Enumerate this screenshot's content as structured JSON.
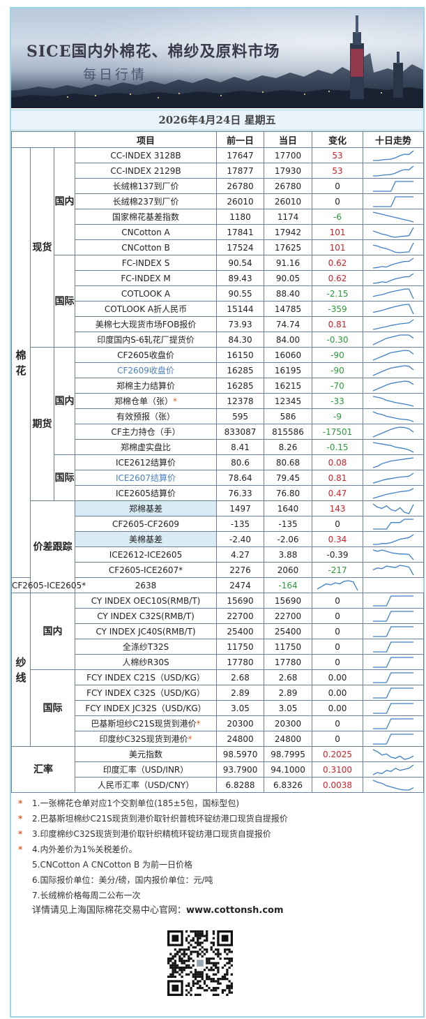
{
  "banner": {
    "title": "SICE国内外棉花、棉纱及原料市场",
    "subtitle": "每日行情"
  },
  "date": "2026年4月24日 星期五",
  "headers": {
    "item": "项目",
    "prev": "前一日",
    "curr": "当日",
    "change": "变化",
    "trend": "十日走势"
  },
  "groups": {
    "cotton": "棉花",
    "spot": "现货",
    "futures": "期货",
    "spread": "价差跟踪",
    "domestic": "国内",
    "international": "国际",
    "yarn": "纱线",
    "fx": "汇率"
  },
  "rows": [
    {
      "label": "CC-INDEX 3128B",
      "prev": "17647",
      "curr": "17700",
      "change": "53",
      "color": "red",
      "trend": [
        17560,
        17560,
        17570,
        17575,
        17580,
        17600,
        17630,
        17650,
        17647,
        17700
      ]
    },
    {
      "label": "CC-INDEX 2129B",
      "prev": "17877",
      "curr": "17930",
      "change": "53",
      "color": "red",
      "trend": [
        17790,
        17790,
        17800,
        17805,
        17810,
        17830,
        17860,
        17880,
        17877,
        17930
      ]
    },
    {
      "label": "长绒棉137到厂价",
      "prev": "26780",
      "curr": "26780",
      "change": "0",
      "color": "black",
      "trend": [
        26500,
        26500,
        26500,
        26500,
        26500,
        26780,
        26780,
        26780,
        26780,
        26780
      ]
    },
    {
      "label": "长绒棉237到厂价",
      "prev": "26010",
      "curr": "26010",
      "change": "0",
      "color": "black",
      "trend": [
        25700,
        25700,
        25700,
        25700,
        25700,
        26010,
        26010,
        26010,
        26010,
        26010
      ]
    },
    {
      "label": "国家棉花基差指数",
      "prev": "1180",
      "curr": "1174",
      "change": "-6",
      "color": "green",
      "trend": [
        1220,
        1215,
        1210,
        1205,
        1200,
        1195,
        1190,
        1185,
        1180,
        1174
      ]
    },
    {
      "label": "CNCotton A",
      "prev": "17841",
      "curr": "17942",
      "change": "101",
      "color": "red",
      "trend": [
        17900,
        17880,
        17860,
        17850,
        17830,
        17820,
        17830,
        17835,
        17841,
        17942
      ]
    },
    {
      "label": "CNCotton B",
      "prev": "17524",
      "curr": "17625",
      "change": "101",
      "color": "red",
      "trend": [
        17600,
        17590,
        17570,
        17560,
        17540,
        17520,
        17515,
        17520,
        17524,
        17625
      ]
    },
    {
      "label": "FC-INDEX S",
      "prev": "90.54",
      "curr": "91.16",
      "change": "0.62",
      "color": "red",
      "trend": [
        89.2,
        89.3,
        89.5,
        89.4,
        89.8,
        90.1,
        90.3,
        90.5,
        90.54,
        91.16
      ]
    },
    {
      "label": "FC-INDEX M",
      "prev": "89.43",
      "curr": "90.05",
      "change": "0.62",
      "color": "red",
      "trend": [
        88.1,
        88.2,
        88.4,
        88.3,
        88.7,
        89.0,
        89.2,
        89.4,
        89.43,
        90.05
      ]
    },
    {
      "label": "COTLOOK A",
      "prev": "90.55",
      "curr": "88.40",
      "change": "-2.15",
      "color": "green",
      "trend": [
        88.9,
        89.1,
        89.3,
        89.6,
        89.9,
        90.1,
        90.3,
        90.5,
        90.55,
        88.4
      ]
    },
    {
      "label": "COTLOOK A折人民币",
      "prev": "15144",
      "curr": "14785",
      "change": "-359",
      "color": "green",
      "trend": [
        14850,
        14880,
        14920,
        14970,
        15020,
        15060,
        15100,
        15130,
        15144,
        14785
      ]
    },
    {
      "label": "美棉七大现货市场FOB报价",
      "prev": "73.93",
      "curr": "74.74",
      "change": "0.81",
      "color": "red",
      "trend": [
        72.3,
        72.5,
        72.8,
        73.0,
        73.3,
        73.5,
        73.7,
        73.8,
        73.93,
        74.74
      ]
    },
    {
      "label": "印度国内S-6轧花厂提货价",
      "prev": "84.30",
      "curr": "84.00",
      "change": "-0.30",
      "color": "green",
      "trend": [
        83.4,
        83.6,
        83.8,
        84.0,
        84.1,
        84.2,
        84.3,
        84.3,
        84.3,
        84.0
      ]
    },
    {
      "label": "CF2605收盘价",
      "prev": "16150",
      "curr": "16060",
      "change": "-90",
      "color": "green",
      "trend": [
        15900,
        15950,
        16000,
        16050,
        16100,
        16120,
        16140,
        16160,
        16150,
        16060
      ]
    },
    {
      "label": "CF2609收盘价",
      "prev": "16285",
      "curr": "16195",
      "change": "-90",
      "color": "green",
      "blue": true,
      "trend": [
        16050,
        16100,
        16150,
        16200,
        16240,
        16260,
        16280,
        16300,
        16285,
        16195
      ]
    },
    {
      "label": "郑棉主力结算价",
      "prev": "16285",
      "curr": "16215",
      "change": "-70",
      "color": "green",
      "trend": [
        16050,
        16100,
        16150,
        16200,
        16240,
        16260,
        16280,
        16300,
        16285,
        16215
      ]
    },
    {
      "label": "郑棉仓单（张）",
      "star": "*",
      "prev": "12378",
      "curr": "12345",
      "change": "-33",
      "color": "green",
      "trend": [
        12600,
        12580,
        12550,
        12500,
        12470,
        12440,
        12420,
        12400,
        12378,
        12345
      ]
    },
    {
      "label": "有效预报（张）",
      "prev": "595",
      "curr": "586",
      "change": "-9",
      "color": "green",
      "trend": [
        640,
        630,
        625,
        615,
        610,
        605,
        600,
        598,
        595,
        586
      ]
    },
    {
      "label": "CF主力持仓（手）",
      "prev": "833087",
      "curr": "815586",
      "change": "-17501",
      "color": "green",
      "trend": [
        790000,
        800000,
        810000,
        820000,
        830000,
        838000,
        842000,
        840000,
        833087,
        815586
      ]
    },
    {
      "label": "郑棉虚实盘比",
      "prev": "8.41",
      "curr": "8.26",
      "change": "-0.15",
      "color": "green",
      "trend": [
        8.9,
        8.85,
        8.8,
        8.75,
        8.7,
        8.6,
        8.55,
        8.5,
        8.41,
        8.26
      ]
    },
    {
      "label": "ICE2612结算价",
      "prev": "80.6",
      "curr": "80.68",
      "change": "0.08",
      "color": "red",
      "trend": [
        79.2,
        79.4,
        79.8,
        80.0,
        80.2,
        80.3,
        80.4,
        80.5,
        80.6,
        80.68
      ]
    },
    {
      "label": "ICE2607结算价",
      "prev": "78.64",
      "curr": "79.45",
      "change": "0.81",
      "color": "red",
      "blue": true,
      "trend": [
        76.8,
        77.1,
        77.5,
        77.8,
        78.0,
        78.2,
        78.4,
        78.5,
        78.64,
        79.45
      ]
    },
    {
      "label": "ICE2605结算价",
      "prev": "76.33",
      "curr": "76.80",
      "change": "0.47",
      "color": "red",
      "trend": [
        74.6,
        74.9,
        75.2,
        75.5,
        75.7,
        75.9,
        76.1,
        76.2,
        76.33,
        76.8
      ]
    },
    {
      "label": "郑棉基差",
      "hl": true,
      "prev": "1497",
      "curr": "1640",
      "change": "143",
      "color": "red",
      "trend": [
        1650,
        1600,
        1580,
        1620,
        1560,
        1540,
        1590,
        1520,
        1497,
        1640
      ]
    },
    {
      "label": "CF2605-CF2609",
      "prev": "-135",
      "curr": "-135",
      "change": "0",
      "color": "black",
      "trend": [
        -150,
        -150,
        -150,
        -150,
        -140,
        -140,
        -140,
        -135,
        -135,
        -135
      ]
    },
    {
      "label": "美棉基差",
      "hl": true,
      "prev": "-2.40",
      "curr": "-2.06",
      "change": "0.34",
      "color": "red",
      "trend": [
        -3.2,
        -3.2,
        -3.1,
        -3.1,
        -3.0,
        -2.8,
        -2.6,
        -2.5,
        -2.4,
        -2.06
      ]
    },
    {
      "label": "ICE2612-ICE2605",
      "prev": "4.27",
      "curr": "3.88",
      "change": "-0.39",
      "color": "black",
      "trend": [
        4.6,
        4.5,
        4.6,
        4.5,
        4.4,
        4.35,
        4.3,
        4.3,
        4.27,
        3.88
      ]
    },
    {
      "label": "CF2605-ICE2607*",
      "prev": "2276",
      "curr": "2060",
      "change": "-217",
      "color": "green",
      "trend": [
        2200,
        2250,
        2230,
        2300,
        2280,
        2260,
        2320,
        2300,
        2276,
        2060
      ]
    },
    {
      "label": "CF2605-ICE2605*",
      "prev": "2638",
      "curr": "2474",
      "change": "-164",
      "color": "green",
      "trend": [
        2500,
        2550,
        2600,
        2580,
        2620,
        2600,
        2650,
        2660,
        2638,
        2474
      ]
    },
    {
      "label": "CY INDEX OEC10S(RMB/T)",
      "prev": "15690",
      "curr": "15690",
      "change": "0",
      "color": "black",
      "trend": [
        15500,
        15500,
        15500,
        15500,
        15690,
        15690,
        15690,
        15690,
        15690,
        15690
      ]
    },
    {
      "label": "CY INDEX C32S(RMB/T)",
      "prev": "22700",
      "curr": "22700",
      "change": "0",
      "color": "black",
      "trend": [
        22500,
        22500,
        22500,
        22500,
        22700,
        22700,
        22700,
        22700,
        22700,
        22700
      ]
    },
    {
      "label": "CY INDEX JC40S(RMB/T)",
      "prev": "25400",
      "curr": "25400",
      "change": "0",
      "color": "black",
      "trend": [
        25200,
        25200,
        25200,
        25200,
        25400,
        25400,
        25400,
        25400,
        25400,
        25400
      ]
    },
    {
      "label": "全涤纱T32S",
      "prev": "11750",
      "curr": "11750",
      "change": "0",
      "color": "black",
      "trend": [
        11700,
        11700,
        11700,
        11700,
        11750,
        11750,
        11750,
        11750,
        11750,
        11750
      ]
    },
    {
      "label": "人棉纱R30S",
      "prev": "17780",
      "curr": "17780",
      "change": "0",
      "color": "black",
      "trend": [
        17700,
        17700,
        17700,
        17700,
        17780,
        17780,
        17780,
        17780,
        17780,
        17780
      ]
    },
    {
      "label": "FCY INDEX C21S（USD/KG）",
      "prev": "2.68",
      "curr": "2.68",
      "change": "0.00",
      "color": "black",
      "trend": [
        2.66,
        2.66,
        2.66,
        2.66,
        2.68,
        2.68,
        2.68,
        2.68,
        2.68,
        2.68
      ]
    },
    {
      "label": "FCY INDEX C32S（USD/KG）",
      "prev": "2.89",
      "curr": "2.89",
      "change": "0.00",
      "color": "black",
      "trend": [
        2.87,
        2.87,
        2.87,
        2.87,
        2.89,
        2.89,
        2.89,
        2.89,
        2.89,
        2.89
      ]
    },
    {
      "label": "FCY INDEX JC32S（USD/KG）",
      "prev": "3.05",
      "curr": "3.05",
      "change": "0.00",
      "color": "black",
      "trend": [
        3.03,
        3.03,
        3.03,
        3.03,
        3.05,
        3.05,
        3.05,
        3.05,
        3.05,
        3.05
      ]
    },
    {
      "label": "巴基斯坦纱C21S现货到港价",
      "star": "*",
      "prev": "20300",
      "curr": "20300",
      "change": "0",
      "color": "black",
      "trend": [
        20200,
        20200,
        20200,
        20200,
        20300,
        20300,
        20300,
        20300,
        20300,
        20300
      ]
    },
    {
      "label": "印度纱C32S现货到港价",
      "star": "*",
      "prev": "24800",
      "curr": "24800",
      "change": "0",
      "color": "black",
      "trend": [
        24700,
        24700,
        24700,
        24700,
        24800,
        24800,
        24800,
        24800,
        24800,
        24800
      ]
    },
    {
      "label": "美元指数",
      "prev": "98.5970",
      "curr": "98.7995",
      "change": "0.2025",
      "color": "red",
      "trend": [
        99.4,
        99.2,
        98.9,
        99.0,
        98.7,
        98.6,
        98.8,
        98.5,
        98.597,
        98.7995
      ]
    },
    {
      "label": "印度汇率（USD/INR）",
      "prev": "93.7900",
      "curr": "94.1000",
      "change": "0.3100",
      "color": "red",
      "trend": [
        93.2,
        93.4,
        93.3,
        93.6,
        93.5,
        93.8,
        93.6,
        93.7,
        93.79,
        94.1
      ]
    },
    {
      "label": "人民币汇率（USD/CNY）",
      "prev": "6.8288",
      "curr": "6.8326",
      "change": "0.0038",
      "color": "red",
      "trend": [
        6.845,
        6.842,
        6.84,
        6.836,
        6.834,
        6.832,
        6.83,
        6.829,
        6.8288,
        6.8326
      ]
    }
  ],
  "notes": [
    {
      "star": "*",
      "text": "1.一张棉花仓单对应1个交割单位(185±5包，国标型包)"
    },
    {
      "star": "*",
      "text": "2.巴基斯坦棉纱C21S现货到港价取针织普梳环锭纺港口现货自提报价"
    },
    {
      "star": "*",
      "text": "3.印度棉纱C32S现货到港价取针织精梳环锭纺港口现货自提报价"
    },
    {
      "star": "*",
      "text": "4.内外差价为1%关税差价。"
    },
    {
      "star": "",
      "text": "5.CNCotton A CNCotton B 为前一日价格"
    },
    {
      "star": "",
      "text": "6.国际报价单位：美分/磅，国内报价单位：元/吨"
    },
    {
      "star": "",
      "text": "7.长绒棉价格每周二公布一次"
    }
  ],
  "site": {
    "prefix": "详情请见上海国际棉花交易中心官网：",
    "url": "www.cottonsh.com"
  },
  "colors": {
    "red": "#d0202a",
    "green": "#2a9a3a",
    "border": "#6c7f94",
    "accent": "#9fd3ea",
    "highlight": "#d9ecf5"
  }
}
